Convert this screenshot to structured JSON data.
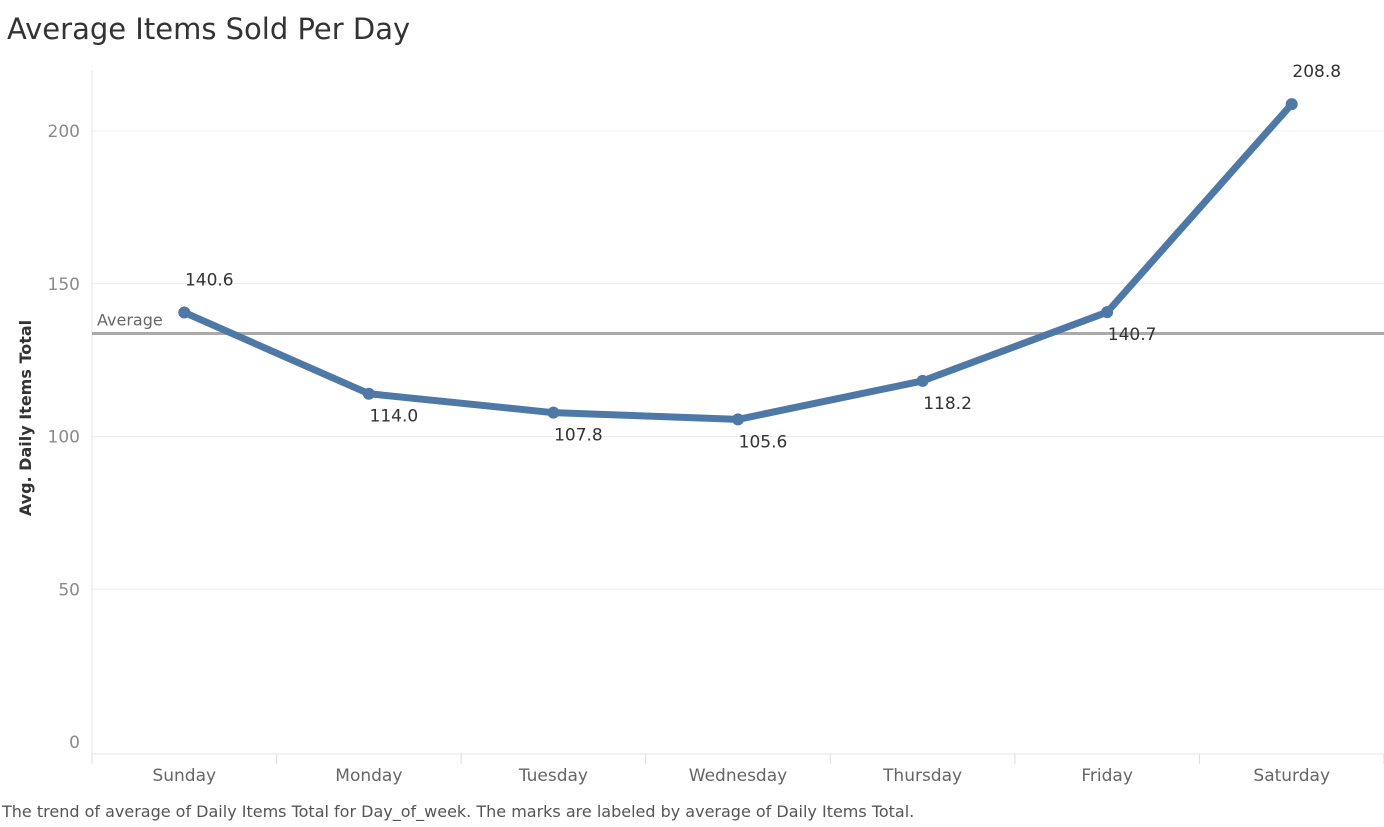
{
  "chart_data": {
    "type": "line",
    "title": "Average Items Sold Per Day",
    "ylabel": "Avg. Daily Items Total",
    "xlabel": "",
    "categories": [
      "Sunday",
      "Monday",
      "Tuesday",
      "Wednesday",
      "Thursday",
      "Friday",
      "Saturday"
    ],
    "series": [
      {
        "values": [
          140.6,
          114.0,
          107.8,
          105.6,
          118.2,
          140.7,
          208.8
        ],
        "labels": [
          "140.6",
          "114.0",
          "107.8",
          "105.6",
          "118.2",
          "140.7",
          "208.8"
        ],
        "color": "#4e79a7"
      }
    ],
    "ylim": [
      0,
      220
    ],
    "yticks": [
      "0",
      "50",
      "100",
      "150",
      "200"
    ],
    "reference_line": {
      "label": "Average",
      "value": 133.7,
      "color": "#aaaaaa"
    },
    "grid": true,
    "legend": "none",
    "caption": "The trend of average of Daily Items Total for Day_of_week.  The marks are labeled by average of Daily Items Total."
  }
}
